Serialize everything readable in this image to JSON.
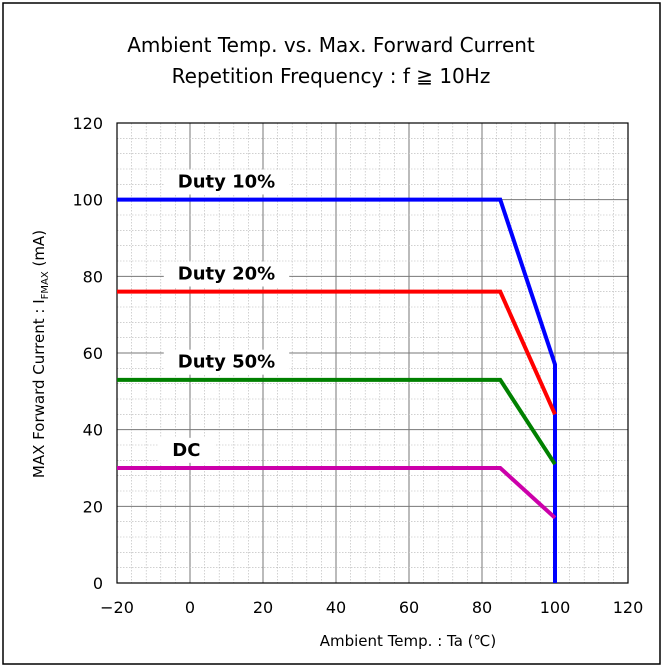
{
  "chart_data": {
    "type": "line",
    "title": "Ambient Temp. vs. Max. Forward Current",
    "subtitle": "Repetition Frequency : f ≧ 10Hz",
    "xlabel": "Ambient Temp. : Ta (℃)",
    "ylabel_prefix": "MAX Forward Current : I",
    "ylabel_sub": "FMAX",
    "ylabel_suffix": " (mA)",
    "xlim": [
      -20,
      120
    ],
    "ylim": [
      0,
      120
    ],
    "x_ticks": [
      -20,
      0,
      20,
      40,
      60,
      80,
      100,
      120
    ],
    "x_tick_labels": [
      "−20",
      "0",
      "20",
      "40",
      "60",
      "80",
      "100",
      "120"
    ],
    "y_ticks": [
      0,
      20,
      40,
      60,
      80,
      100,
      120
    ],
    "y_tick_labels": [
      "0",
      "20",
      "40",
      "60",
      "80",
      "100",
      "120"
    ],
    "grid": true,
    "series": [
      {
        "name": "Duty 10%",
        "color": "#0000ff",
        "x": [
          -20,
          85,
          100,
          100
        ],
        "y": [
          100,
          100,
          57,
          0
        ],
        "label_at": [
          10,
          105
        ]
      },
      {
        "name": "Duty 20%",
        "color": "#ff0000",
        "x": [
          -20,
          85,
          100
        ],
        "y": [
          76,
          76,
          44
        ],
        "label_at": [
          10,
          81
        ]
      },
      {
        "name": "Duty 50%",
        "color": "#008000",
        "x": [
          -20,
          85,
          100
        ],
        "y": [
          53,
          53,
          31
        ],
        "label_at": [
          10,
          58
        ]
      },
      {
        "name": "DC",
        "color": "#cc00aa",
        "x": [
          -20,
          85,
          100
        ],
        "y": [
          30,
          30,
          17
        ],
        "label_at": [
          -1,
          35
        ]
      }
    ]
  }
}
